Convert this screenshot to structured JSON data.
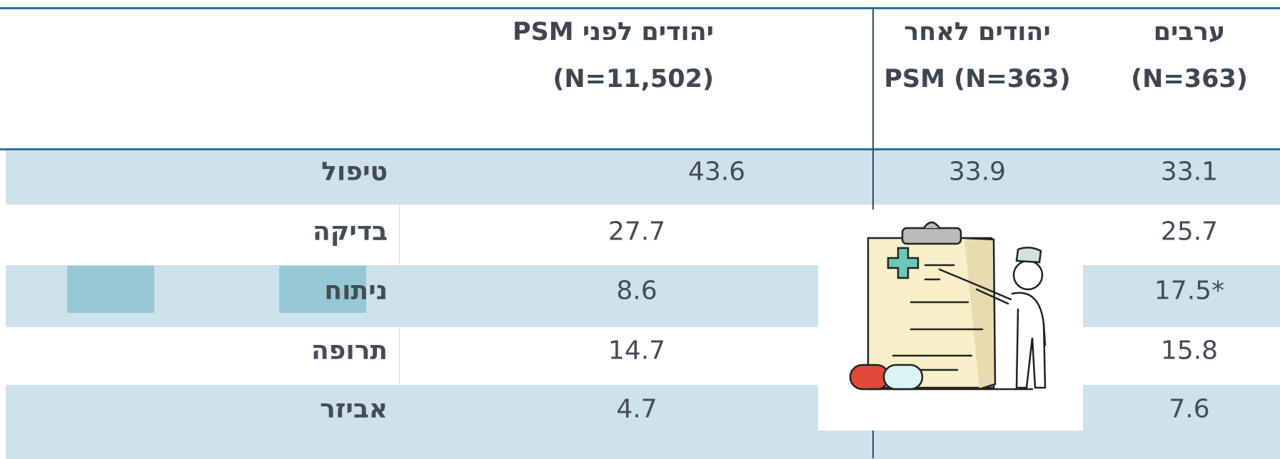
{
  "header": {
    "columns": [
      {
        "lines": [
          "ערבים",
          "(N=363)"
        ]
      },
      {
        "lines": [
          "יהודים לאחר",
          "PSM (N=363)"
        ]
      },
      {
        "lines": [
          "יהודים לפני PSM",
          "(N=11,502)"
        ]
      }
    ]
  },
  "table": {
    "rows": [
      {
        "label": "טיפול",
        "before": "43.6",
        "after": "33.9",
        "arabs": "33.1"
      },
      {
        "label": "בדיקה",
        "before": "27.7",
        "arabs": "25.7"
      },
      {
        "label": "ניתוח",
        "before": "8.6",
        "arabs": "17.5*"
      },
      {
        "label": "תרופה",
        "before": "14.7",
        "arabs": "15.8"
      },
      {
        "label": "אביזר",
        "before": "4.7",
        "arabs": "7.6"
      }
    ]
  }
}
